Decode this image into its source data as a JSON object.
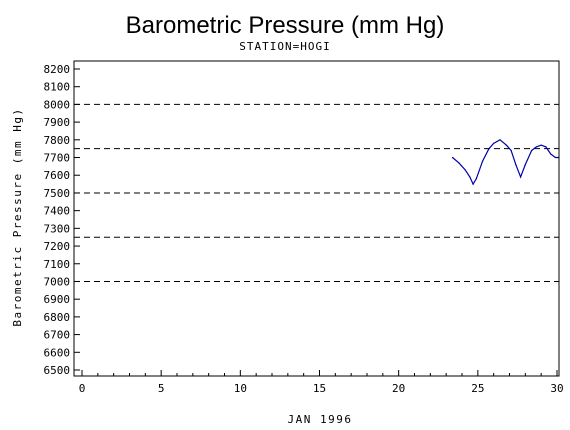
{
  "chart_data": {
    "type": "line",
    "title": "Barometric Pressure (mm Hg)",
    "subtitle": "STATION=HOGI",
    "xlabel": "JAN 1996",
    "ylabel": "Barometric Pressure (mm Hg)",
    "xlim": [
      0,
      30
    ],
    "ylim": [
      6500,
      8200
    ],
    "x_ticks": [
      0,
      5,
      10,
      15,
      20,
      25,
      30
    ],
    "y_ticks": [
      6500,
      6600,
      6700,
      6800,
      6900,
      7000,
      7100,
      7200,
      7300,
      7400,
      7500,
      7600,
      7700,
      7800,
      7900,
      8000,
      8100,
      8200
    ],
    "reference_lines": [
      7000,
      7250,
      7500,
      7750,
      8000
    ],
    "line_color": "#0000aa",
    "series": [
      {
        "x": [
          23.4,
          23.8,
          24.2,
          24.5,
          24.7,
          24.9,
          25.3,
          25.7,
          26.0,
          26.4,
          26.8,
          27.1,
          27.4,
          27.7,
          28.0,
          28.4,
          28.7,
          29.0,
          29.3,
          29.6,
          29.9,
          30.1
        ],
        "y": [
          7700,
          7670,
          7630,
          7590,
          7550,
          7580,
          7680,
          7750,
          7780,
          7800,
          7770,
          7740,
          7660,
          7590,
          7660,
          7740,
          7760,
          7770,
          7760,
          7720,
          7700,
          7700
        ]
      }
    ]
  }
}
